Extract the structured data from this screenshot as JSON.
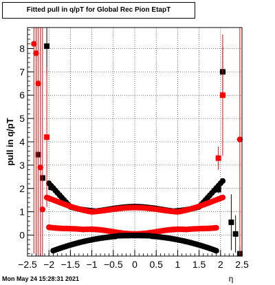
{
  "title": "Fitted pull in q/pT for Global Rec Pion EtapT",
  "footer": "Mon May 24 15:28:31 2021",
  "chart_data": {
    "type": "scatter",
    "xlabel": "η",
    "ylabel": "pull in q/pT",
    "xlim": [
      -2.5,
      2.5
    ],
    "ylim": [
      -0.9,
      8.9
    ],
    "x_ticks": [
      -2.5,
      -2,
      -1.5,
      -1,
      -0.5,
      0,
      0.5,
      1,
      1.5,
      2,
      2.5
    ],
    "x_tick_labels": [
      "−2.5",
      "−2",
      "−1.5",
      "−1",
      "−0.5",
      "0",
      "0.5",
      "1",
      "1.5",
      "2",
      "2.5"
    ],
    "y_ticks": [
      0,
      1,
      2,
      3,
      4,
      5,
      6,
      7,
      8
    ],
    "y_tick_labels": [
      "0",
      "1",
      "2",
      "3",
      "4",
      "5",
      "6",
      "7",
      "8"
    ],
    "grid": true,
    "colors": {
      "black_series": "#000000",
      "red_series": "#ff0000"
    },
    "series": [
      {
        "color": "#000000",
        "marker": "square",
        "points": [
          {
            "x": -2.25,
            "y": 3.45,
            "err": 0.1
          },
          {
            "x": -2.15,
            "y": 2.45,
            "err": 0.15
          },
          {
            "x": -2.05,
            "y": 8.1,
            "err": 1.2
          },
          {
            "x": -1.95,
            "y": 2.05,
            "err": 0.15
          },
          {
            "x": 1.95,
            "y": 1.95,
            "err": 0.15
          },
          {
            "x": 2.05,
            "y": 7.0,
            "err": 1.1
          },
          {
            "x": 2.25,
            "y": 0.55,
            "err": 1.2
          },
          {
            "x": 2.35,
            "y": 0.05,
            "err": 0.8
          },
          {
            "x": 2.45,
            "y": -0.8,
            "err": 0.3
          }
        ]
      },
      {
        "color": "#ff0000",
        "marker": "square",
        "points": [
          {
            "x": -2.05,
            "y": 4.2,
            "err": 3.0
          },
          {
            "x": 2.05,
            "y": 6.0,
            "err": 2.6
          },
          {
            "x": 1.95,
            "y": 3.3,
            "err": 0.5
          }
        ]
      },
      {
        "color": "#ff0000",
        "marker": "circle",
        "points": [
          {
            "x": -2.35,
            "y": 8.2,
            "err": 9.0
          },
          {
            "x": -2.3,
            "y": 7.8,
            "err": 9.0
          },
          {
            "x": -2.25,
            "y": 6.5,
            "err": 9.0
          },
          {
            "x": -2.2,
            "y": 2.9,
            "err": 9.0
          },
          {
            "x": -2.15,
            "y": 1.1,
            "err": 9.0
          },
          {
            "x": 2.45,
            "y": 4.1,
            "err": 9.0
          }
        ]
      }
    ],
    "bands": [
      {
        "color": "#000000",
        "kind": "upper_black",
        "x_range": [
          -2.0,
          2.05
        ]
      },
      {
        "color": "#ff0000",
        "kind": "upper_red",
        "x_range": [
          -2.05,
          2.05
        ]
      },
      {
        "color": "#ff0000",
        "kind": "lower_red",
        "x_range": [
          -2.0,
          1.9
        ]
      },
      {
        "color": "#000000",
        "kind": "lower_black",
        "x_range": [
          -1.9,
          1.9
        ]
      }
    ]
  }
}
